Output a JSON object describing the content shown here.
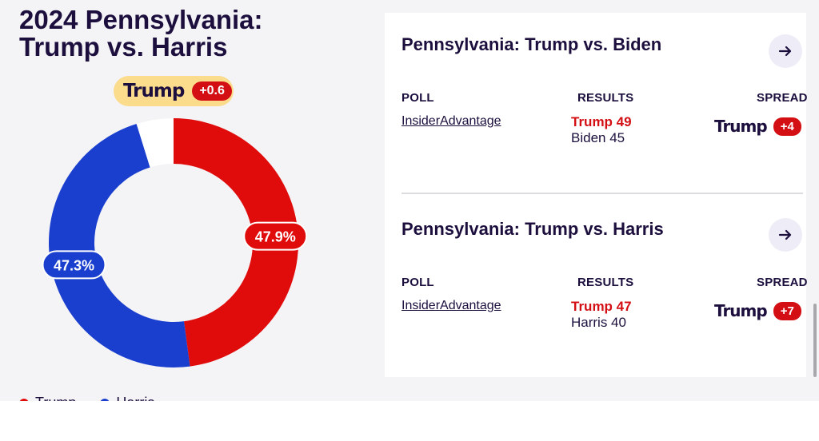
{
  "page": {
    "title_line1": "2024 Pennsylvania:",
    "title_line2": "Trump vs. Harris",
    "leader": {
      "name": "Trump",
      "spread": "+0.6"
    }
  },
  "chart_data": {
    "type": "pie",
    "title": "2024 Pennsylvania: Trump vs. Harris",
    "style": "donut",
    "slices": [
      {
        "name": "Trump",
        "value": 47.9,
        "label": "47.9%",
        "color": "#e00b0b"
      },
      {
        "name": "Harris",
        "value": 47.3,
        "label": "47.3%",
        "color": "#1a3fcf"
      },
      {
        "name": "Other",
        "value": 4.8,
        "label": "",
        "color": "#ffffff"
      }
    ],
    "legend": [
      "Trump",
      "Harris"
    ]
  },
  "legend": [
    {
      "name": "Trump",
      "color": "#e00b0b"
    },
    {
      "name": "Harris",
      "color": "#1a3fcf"
    }
  ],
  "colors": {
    "trump": "#d40f14",
    "harris": "#1a3fcf",
    "navy": "#1c0f3e",
    "highlight": "#fbdc8c"
  },
  "polls": [
    {
      "title": "Pennsylvania: Trump vs. Biden",
      "headers": {
        "poll": "POLL",
        "results": "RESULTS",
        "spread": "SPREAD"
      },
      "pollster": "InsiderAdvantage",
      "winner_result": "Trump 49",
      "loser_result": "Biden 45",
      "spread_name": "Trump",
      "spread_value": "+4",
      "arrow_icon": "arrow-right-icon"
    },
    {
      "title": "Pennsylvania: Trump vs. Harris",
      "headers": {
        "poll": "POLL",
        "results": "RESULTS",
        "spread": "SPREAD"
      },
      "pollster": "InsiderAdvantage",
      "winner_result": "Trump 47",
      "loser_result": "Harris 40",
      "spread_name": "Trump",
      "spread_value": "+7",
      "arrow_icon": "arrow-right-icon"
    }
  ]
}
